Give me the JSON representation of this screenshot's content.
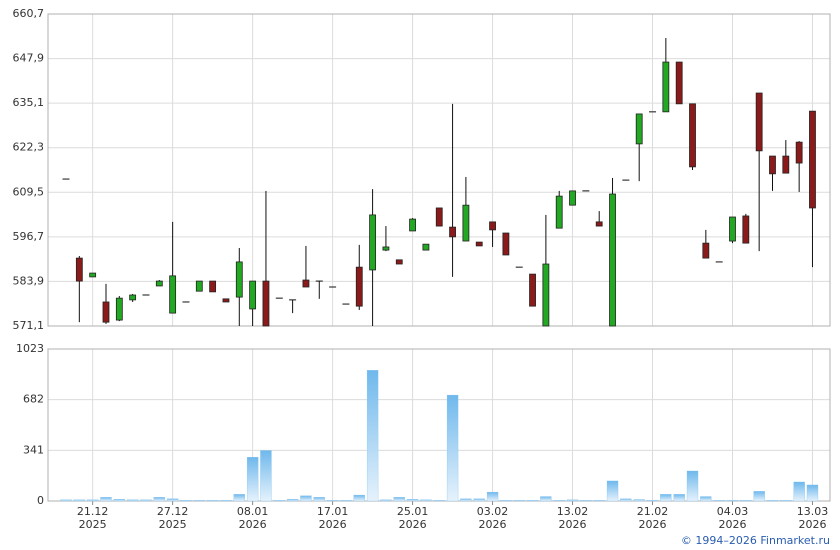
{
  "chart_data": {
    "type": "candlestick",
    "categories": [
      null,
      null,
      "21.12",
      null,
      null,
      null,
      null,
      null,
      "27.12",
      null,
      null,
      null,
      null,
      null,
      "08.01",
      null,
      null,
      null,
      null,
      null,
      "17.01",
      null,
      null,
      null,
      null,
      null,
      "25.01",
      null,
      null,
      null,
      null,
      null,
      "03.02",
      null,
      null,
      null,
      null,
      null,
      "13.02",
      null,
      null,
      null,
      null,
      null,
      "21.02",
      null,
      null,
      null,
      null,
      null,
      "04.03",
      null,
      null,
      null,
      null,
      null,
      "13.03"
    ],
    "category_years": [
      null,
      null,
      "2025",
      null,
      null,
      null,
      null,
      null,
      "2025",
      null,
      null,
      null,
      null,
      null,
      "2026",
      null,
      null,
      null,
      null,
      null,
      "2026",
      null,
      null,
      null,
      null,
      null,
      "2026",
      null,
      null,
      null,
      null,
      null,
      "2026",
      null,
      null,
      null,
      null,
      null,
      "2026",
      null,
      null,
      null,
      null,
      null,
      "2026",
      null,
      null,
      null,
      null,
      null,
      "2026",
      null,
      null,
      null,
      null,
      null,
      "2026"
    ],
    "open": [
      613.3,
      590.6,
      585.2,
      578.0,
      572.8,
      578.6,
      580.0,
      582.6,
      574.8,
      578.0,
      581.1,
      584.0,
      578.9,
      579.4,
      576.0,
      584.0,
      579.1,
      578.6,
      584.3,
      584.0,
      582.3,
      577.4,
      588.0,
      587.2,
      592.9,
      590.1,
      598.4,
      592.9,
      605.0,
      599.5,
      595.5,
      595.2,
      601.0,
      597.8,
      588.0,
      586.0,
      571.1,
      599.2,
      605.8,
      609.9,
      601.0,
      571.1,
      613.0,
      623.4,
      632.6,
      632.6,
      646.9,
      634.9,
      594.9,
      589.5,
      595.5,
      602.7,
      638.0,
      619.9,
      619.9,
      623.9,
      632.8
    ],
    "high": [
      613.3,
      591.2,
      586.3,
      583.2,
      579.7,
      580.3,
      580.0,
      584.3,
      601.0,
      578.0,
      584.0,
      584.0,
      578.9,
      593.5,
      584.0,
      609.9,
      579.1,
      578.6,
      594.1,
      584.0,
      582.3,
      577.4,
      594.4,
      610.4,
      599.8,
      590.1,
      602.1,
      594.6,
      605.0,
      634.9,
      613.9,
      595.2,
      601.0,
      597.8,
      588.0,
      586.0,
      603.0,
      609.9,
      609.9,
      609.9,
      604.1,
      613.6,
      613.0,
      632.0,
      632.6,
      653.8,
      646.9,
      634.9,
      598.7,
      589.5,
      602.4,
      603.3,
      638.0,
      619.9,
      624.5,
      624.2,
      632.8
    ],
    "low": [
      613.3,
      572.2,
      585.2,
      571.7,
      572.5,
      578.0,
      580.0,
      582.6,
      574.8,
      578.0,
      581.1,
      580.9,
      578.0,
      571.1,
      571.1,
      571.1,
      579.1,
      574.8,
      582.3,
      578.9,
      582.3,
      577.4,
      575.7,
      571.1,
      592.6,
      588.9,
      598.4,
      592.9,
      599.8,
      585.2,
      595.5,
      594.1,
      593.8,
      591.5,
      588.0,
      576.8,
      571.1,
      599.2,
      605.8,
      609.9,
      599.8,
      571.1,
      613.0,
      612.7,
      632.6,
      632.6,
      634.9,
      615.9,
      590.6,
      589.5,
      594.9,
      594.9,
      592.6,
      609.9,
      615.0,
      609.6,
      588.0
    ],
    "close": [
      613.3,
      584.0,
      586.3,
      572.2,
      579.1,
      580.0,
      580.0,
      584.0,
      585.5,
      578.0,
      584.0,
      580.9,
      578.0,
      589.5,
      584.0,
      571.1,
      579.1,
      578.6,
      582.3,
      584.0,
      582.3,
      577.4,
      576.8,
      603.0,
      593.8,
      588.9,
      601.8,
      594.6,
      599.8,
      596.7,
      605.8,
      594.1,
      598.7,
      591.5,
      588.0,
      576.8,
      588.9,
      608.4,
      609.9,
      609.9,
      599.8,
      609.0,
      613.0,
      632.0,
      632.6,
      646.9,
      634.9,
      616.8,
      590.6,
      589.5,
      602.4,
      594.9,
      621.4,
      614.8,
      615.0,
      617.9,
      605.0
    ],
    "volume": [
      8,
      8,
      8,
      25,
      12,
      8,
      8,
      25,
      15,
      5,
      5,
      5,
      5,
      45,
      295,
      340,
      5,
      12,
      35,
      25,
      5,
      5,
      40,
      880,
      8,
      25,
      12,
      8,
      5,
      713,
      15,
      15,
      60,
      5,
      5,
      5,
      30,
      5,
      8,
      5,
      5,
      135,
      15,
      10,
      5,
      45,
      45,
      202,
      30,
      5,
      5,
      5,
      65,
      5,
      5,
      128,
      108
    ],
    "up_color": "#22a822",
    "down_color": "#8b1a1a",
    "volume_color": "#7cc0ee",
    "ylim": [
      571.1,
      660.7
    ],
    "yticks": [
      {
        "value": 571.1,
        "label": "571,1"
      },
      {
        "value": 583.9,
        "label": "583,9"
      },
      {
        "value": 596.7,
        "label": "596,7"
      },
      {
        "value": 609.5,
        "label": "609,5"
      },
      {
        "value": 622.3,
        "label": "622,3"
      },
      {
        "value": 635.1,
        "label": "635,1"
      },
      {
        "value": 647.9,
        "label": "647,9"
      },
      {
        "value": 660.7,
        "label": "660,7"
      }
    ],
    "volume_ylim": [
      0,
      1023
    ],
    "volume_yticks": [
      0,
      341,
      682,
      1023
    ],
    "grid": true
  },
  "footer": "© 1994–2026 Finmarket.ru"
}
